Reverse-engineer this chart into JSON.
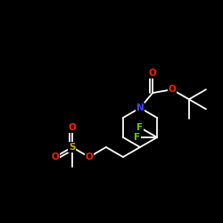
{
  "background_color": "#000000",
  "bond_color": "#ffffff",
  "atom_colors": {
    "F": "#66cc00",
    "N": "#4444ff",
    "O": "#ff2200",
    "S": "#ccaa00",
    "C": "#ffffff"
  },
  "fig_width": 2.5,
  "fig_height": 2.5,
  "dpi": 100
}
